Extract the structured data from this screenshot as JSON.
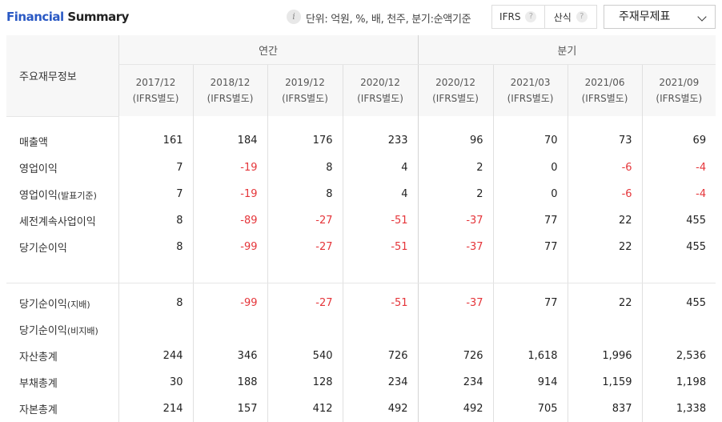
{
  "header": {
    "title_part1": "Financial",
    "title_part2": " Summary",
    "info_icon": "i",
    "unit_text": "단위: 억원, %, 배, 천주, 분기:순액기준",
    "ifrs_label": "IFRS",
    "formula_label": "산식",
    "help_glyph": "?",
    "select_value": "주재무제표"
  },
  "table": {
    "row_header": "주요재무정보",
    "group_annual": "연간",
    "group_quarter": "분기",
    "columns": [
      {
        "period": "2017/12",
        "basis": "(IFRS별도)"
      },
      {
        "period": "2018/12",
        "basis": "(IFRS별도)"
      },
      {
        "period": "2019/12",
        "basis": "(IFRS별도)"
      },
      {
        "period": "2020/12",
        "basis": "(IFRS별도)"
      },
      {
        "period": "2020/12",
        "basis": "(IFRS별도)"
      },
      {
        "period": "2021/03",
        "basis": "(IFRS별도)"
      },
      {
        "period": "2021/06",
        "basis": "(IFRS별도)"
      },
      {
        "period": "2021/09",
        "basis": "(IFRS별도)"
      }
    ],
    "rows_group1": [
      {
        "label": "매출액",
        "suffix": "",
        "values": [
          "161",
          "184",
          "176",
          "233",
          "96",
          "70",
          "73",
          "69"
        ]
      },
      {
        "label": "영업이익",
        "suffix": "",
        "values": [
          "7",
          "-19",
          "8",
          "4",
          "2",
          "0",
          "-6",
          "-4"
        ]
      },
      {
        "label": "영업이익",
        "suffix": "(발표기준)",
        "values": [
          "7",
          "-19",
          "8",
          "4",
          "2",
          "0",
          "-6",
          "-4"
        ]
      },
      {
        "label": "세전계속사업이익",
        "suffix": "",
        "values": [
          "8",
          "-89",
          "-27",
          "-51",
          "-37",
          "77",
          "22",
          "455"
        ]
      },
      {
        "label": "당기순이익",
        "suffix": "",
        "values": [
          "8",
          "-99",
          "-27",
          "-51",
          "-37",
          "77",
          "22",
          "455"
        ]
      }
    ],
    "rows_group2": [
      {
        "label": "당기순이익",
        "suffix": "(지배)",
        "values": [
          "8",
          "-99",
          "-27",
          "-51",
          "-37",
          "77",
          "22",
          "455"
        ]
      },
      {
        "label": "당기순이익",
        "suffix": "(비지배)",
        "values": [
          "",
          "",
          "",
          "",
          "",
          "",
          "",
          ""
        ]
      },
      {
        "label": "자산총계",
        "suffix": "",
        "values": [
          "244",
          "346",
          "540",
          "726",
          "726",
          "1,618",
          "1,996",
          "2,536"
        ]
      },
      {
        "label": "부채총계",
        "suffix": "",
        "values": [
          "30",
          "188",
          "128",
          "234",
          "234",
          "914",
          "1,159",
          "1,198"
        ]
      },
      {
        "label": "자본총계",
        "suffix": "",
        "values": [
          "214",
          "157",
          "412",
          "492",
          "492",
          "705",
          "837",
          "1,338"
        ]
      }
    ]
  }
}
